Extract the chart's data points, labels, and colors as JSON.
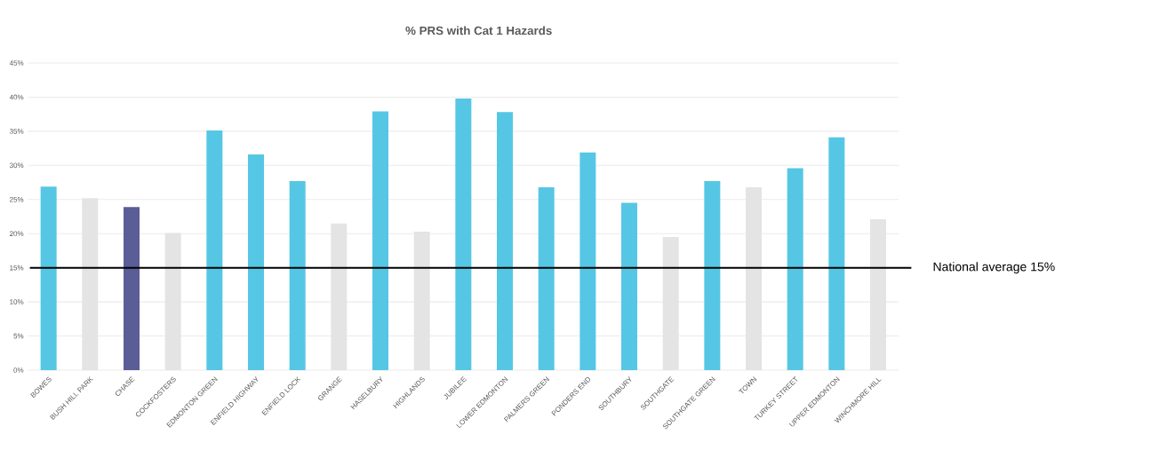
{
  "chart_data": {
    "type": "bar",
    "title": "% PRS with Cat 1 Hazards",
    "categories": [
      "BOWES",
      "BUSH HILL PARK",
      "CHASE",
      "COCKFOSTERS",
      "EDMONTON GREEN",
      "ENFIELD HIGHWAY",
      "ENFIELD LOCK",
      "GRANGE",
      "HASELBURY",
      "HIGHLANDS",
      "JUBILEE",
      "LOWER EDMONTON",
      "PALMERS GREEN",
      "PONDERS END",
      "SOUTHBURY",
      "SOUTHGATE",
      "SOUTHGATE GREEN",
      "TOWN",
      "TURKEY STREET",
      "UPPER EDMONTON",
      "WINCHMORE HILL"
    ],
    "values": [
      26.9,
      25.2,
      23.9,
      20.1,
      35.1,
      31.6,
      27.7,
      21.5,
      37.9,
      20.3,
      39.8,
      37.8,
      26.8,
      31.9,
      24.5,
      19.5,
      27.7,
      26.8,
      29.6,
      34.1,
      22.1
    ],
    "colors": [
      "#55c7e4",
      "#e4e4e4",
      "#5a5d96",
      "#e4e4e4",
      "#55c7e4",
      "#55c7e4",
      "#55c7e4",
      "#e4e4e4",
      "#55c7e4",
      "#e4e4e4",
      "#55c7e4",
      "#55c7e4",
      "#55c7e4",
      "#55c7e4",
      "#55c7e4",
      "#e4e4e4",
      "#55c7e4",
      "#e4e4e4",
      "#55c7e4",
      "#55c7e4",
      "#e4e4e4"
    ],
    "ylim": [
      0,
      45
    ],
    "yticks": [
      {
        "value": 0,
        "label": "0%"
      },
      {
        "value": 5,
        "label": "5%"
      },
      {
        "value": 10,
        "label": "10%"
      },
      {
        "value": 15,
        "label": "15%"
      },
      {
        "value": 20,
        "label": "20%"
      },
      {
        "value": 25,
        "label": "25%"
      },
      {
        "value": 30,
        "label": "30%"
      },
      {
        "value": 35,
        "label": "35%"
      },
      {
        "value": 40,
        "label": "40%"
      },
      {
        "value": 45,
        "label": "45%"
      }
    ],
    "grid": "y",
    "ref_lines": [
      {
        "axis": "y",
        "value": 15,
        "label": "National average 15%",
        "color": "#000000"
      }
    ]
  }
}
